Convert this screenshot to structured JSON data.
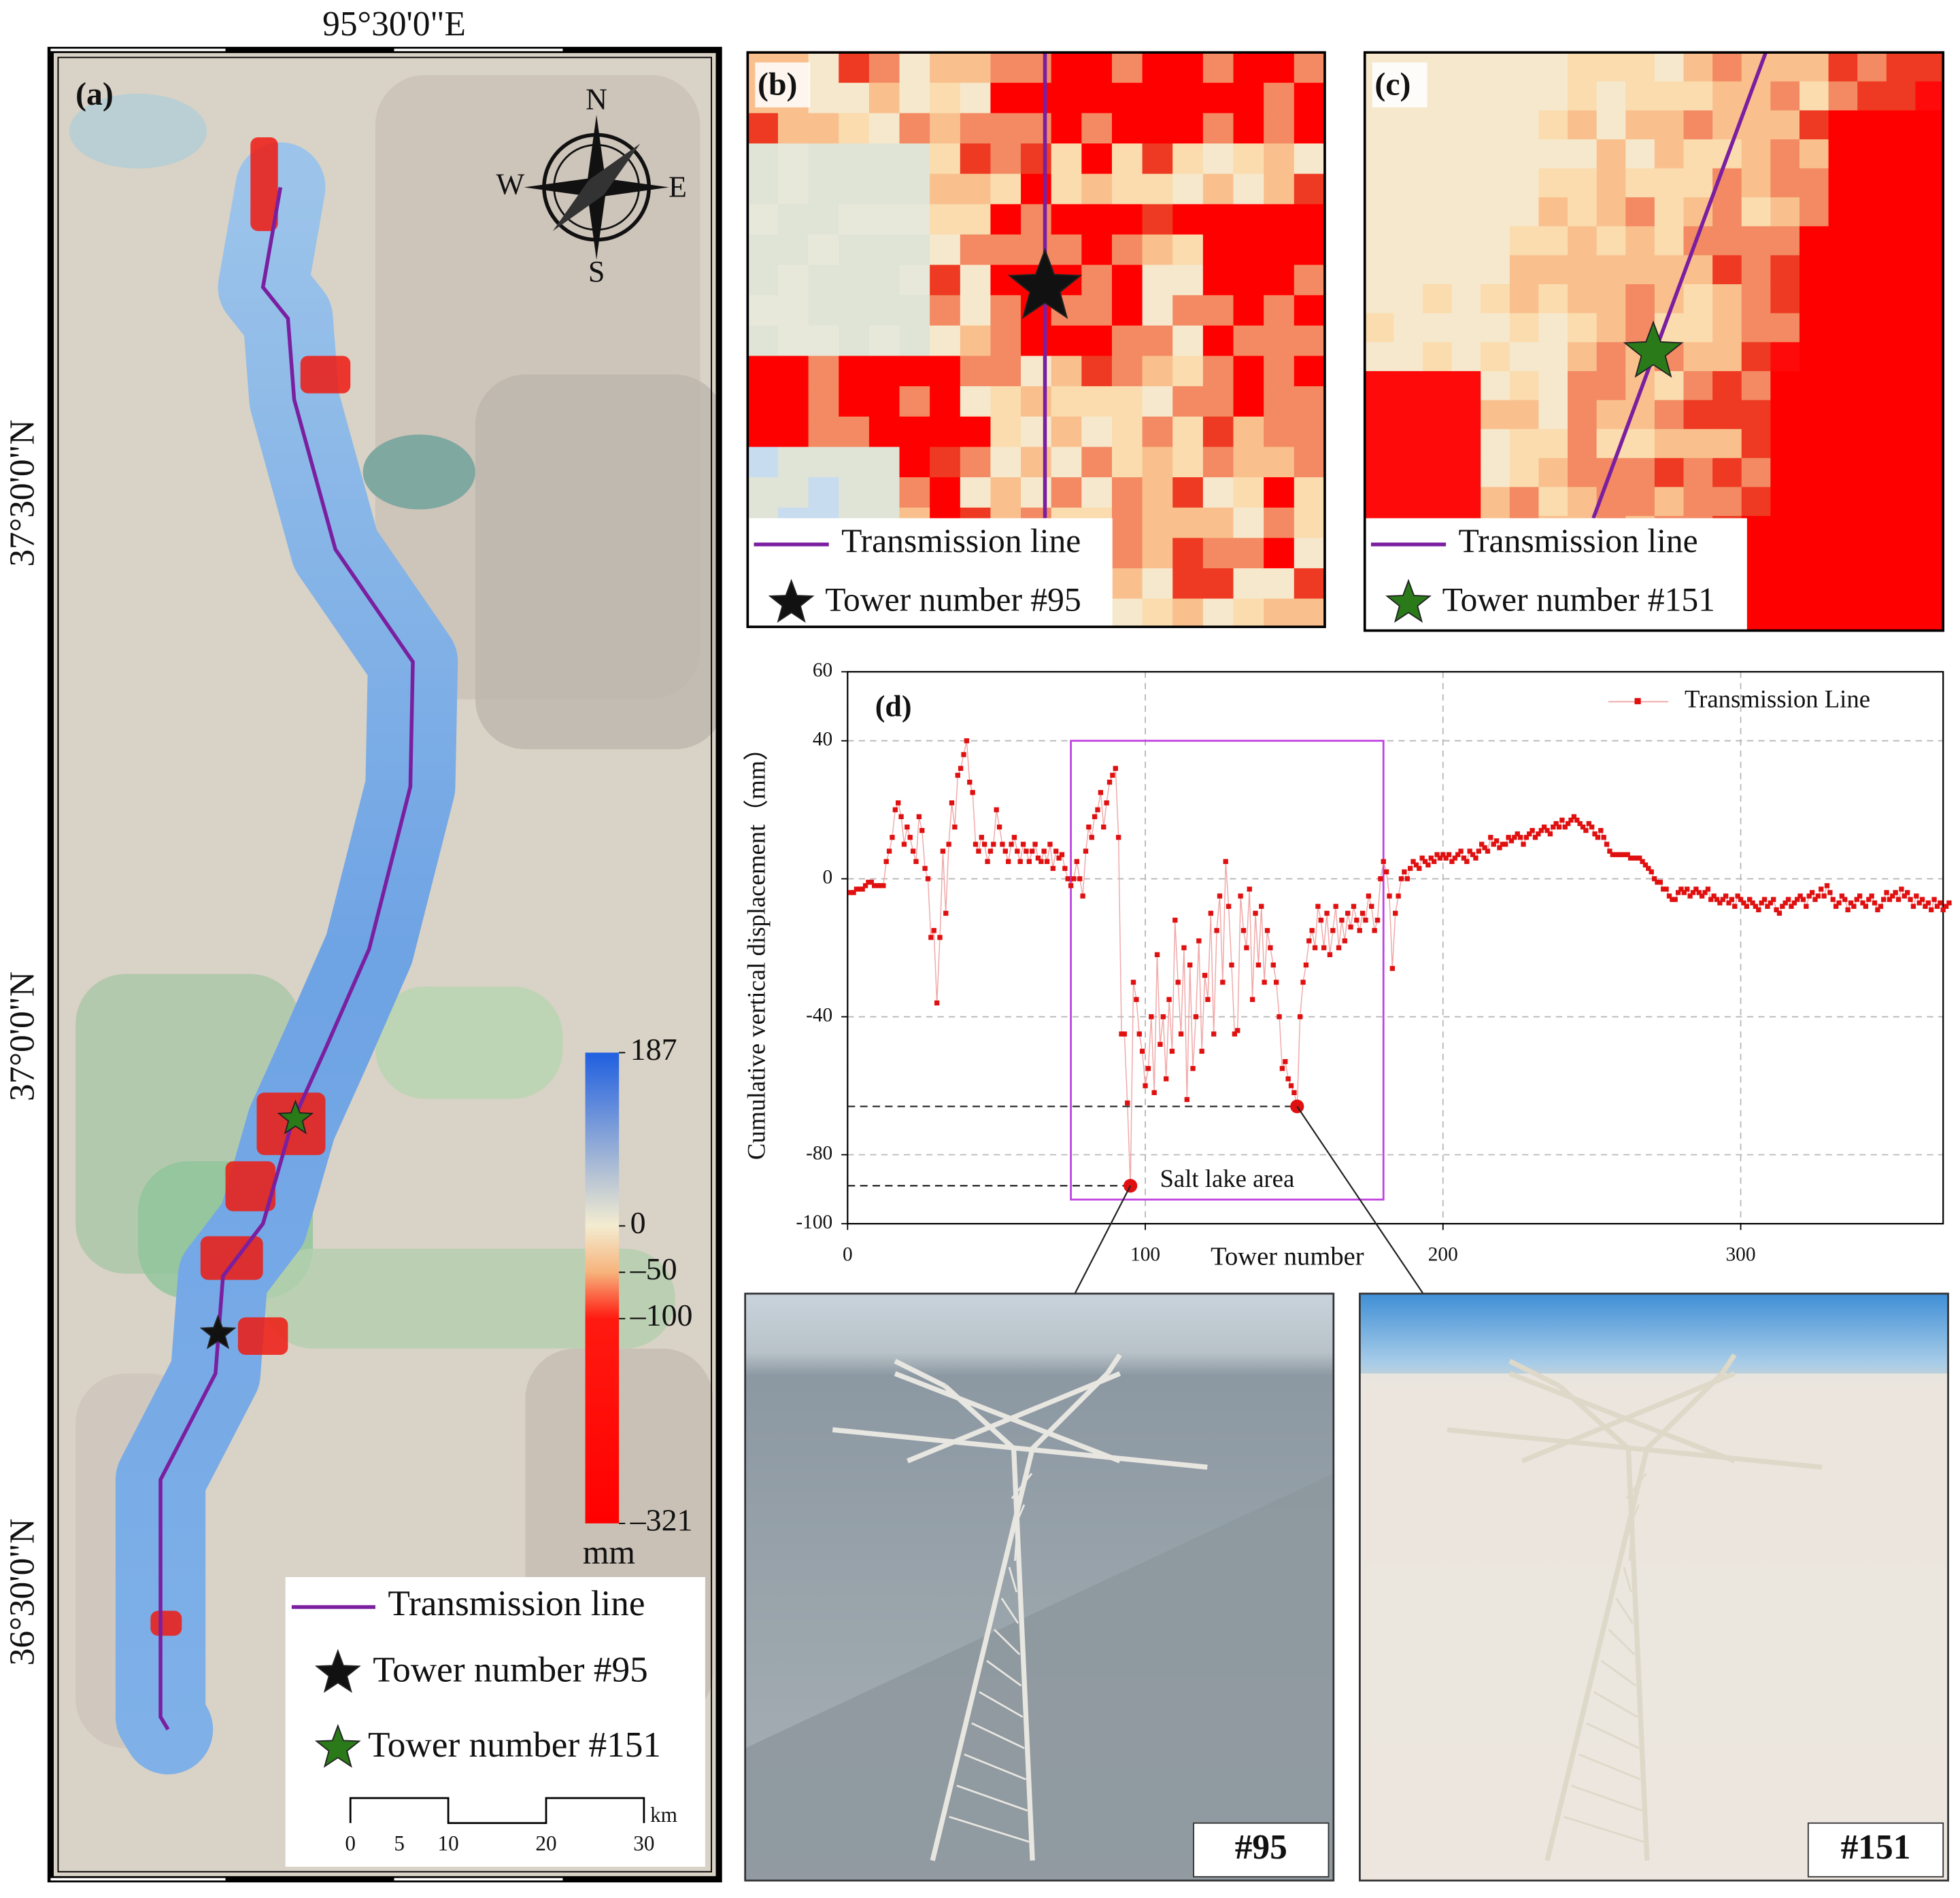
{
  "map": {
    "panel_label": "(a)",
    "longitude_label": "95°30'0\"E",
    "latitude_labels": [
      "37°30'0\"N",
      "37°0'0\"N",
      "36°30'0\"N"
    ],
    "compass": {
      "N": "N",
      "E": "E",
      "S": "S",
      "W": "W"
    },
    "colorbar": {
      "clim": [
        -321,
        187
      ],
      "ticks": [
        187,
        0,
        {
          "value": -50,
          "label": "–50"
        },
        {
          "value": -100,
          "label": "–100"
        },
        {
          "value": -321,
          "label": "–321"
        }
      ],
      "unit": "mm"
    },
    "legend": [
      "Transmission line",
      "Tower number #95",
      "Tower number #151"
    ],
    "scale_bar": {
      "ticks": [
        0,
        5,
        10,
        20,
        30
      ],
      "unit": "km"
    }
  },
  "panel_b": {
    "panel_label": "(b)",
    "legend": [
      "Transmission line",
      "Tower number #95"
    ]
  },
  "panel_c": {
    "panel_label": "(c)",
    "legend": [
      "Transmission line",
      "Tower number #151"
    ]
  },
  "photos": [
    {
      "label": "#95"
    },
    {
      "label": "#151"
    }
  ],
  "chart_data": {
    "type": "line",
    "panel_label": "(d)",
    "x_label": "Tower number",
    "y_label": "Cumulative vertical displacement（mm）",
    "annotation": "Salt lake area",
    "legend": "top-right",
    "grid": true,
    "xlim": [
      0,
      368
    ],
    "xticks": [
      0,
      100,
      200,
      300
    ],
    "ylim": [
      -100,
      60
    ],
    "yticks": [
      -100,
      -80,
      -40,
      0,
      40,
      60
    ],
    "highlight_box": {
      "x": [
        75,
        180
      ],
      "y": [
        -93,
        40
      ]
    },
    "highlight_x": [
      95,
      151
    ],
    "x": [
      1,
      2,
      3,
      4,
      5,
      6,
      7,
      8,
      9,
      10,
      11,
      12,
      13,
      14,
      15,
      16,
      17,
      18,
      19,
      20,
      21,
      22,
      23,
      24,
      25,
      26,
      27,
      28,
      29,
      30,
      31,
      32,
      33,
      34,
      35,
      36,
      37,
      38,
      39,
      40,
      41,
      42,
      43,
      44,
      45,
      46,
      47,
      48,
      49,
      50,
      51,
      52,
      53,
      54,
      55,
      56,
      57,
      58,
      59,
      60,
      61,
      62,
      63,
      64,
      65,
      66,
      67,
      68,
      69,
      70,
      71,
      72,
      73,
      74,
      75,
      76,
      77,
      78,
      79,
      80,
      81,
      82,
      83,
      84,
      85,
      86,
      87,
      88,
      89,
      90,
      91,
      92,
      93,
      94,
      95,
      96,
      97,
      98,
      99,
      100,
      101,
      102,
      103,
      104,
      105,
      106,
      107,
      108,
      109,
      110,
      111,
      112,
      113,
      114,
      115,
      116,
      117,
      118,
      119,
      120,
      121,
      122,
      123,
      124,
      125,
      126,
      127,
      128,
      129,
      130,
      131,
      132,
      133,
      134,
      135,
      136,
      137,
      138,
      139,
      140,
      141,
      142,
      143,
      144,
      145,
      146,
      147,
      148,
      149,
      150,
      151,
      152,
      153,
      154,
      155,
      156,
      157,
      158,
      159,
      160,
      161,
      162,
      163,
      164,
      165,
      166,
      167,
      168,
      169,
      170,
      171,
      172,
      173,
      174,
      175,
      176,
      177,
      178,
      179,
      180,
      181,
      182,
      183,
      184,
      185,
      186,
      187,
      188,
      189,
      190,
      191,
      192,
      193,
      194,
      195,
      196,
      197,
      198,
      199,
      200,
      201,
      202,
      203,
      204,
      205,
      206,
      207,
      208,
      209,
      210,
      211,
      212,
      213,
      214,
      215,
      216,
      217,
      218,
      219,
      220,
      221,
      222,
      223,
      224,
      225,
      226,
      227,
      228,
      229,
      230,
      231,
      232,
      233,
      234,
      235,
      236,
      237,
      238,
      239,
      240,
      241,
      242,
      243,
      244,
      245,
      246,
      247,
      248,
      249,
      250,
      251,
      252,
      253,
      254,
      255,
      256,
      257,
      258,
      259,
      260,
      261,
      262,
      263,
      264,
      265,
      266,
      267,
      268,
      269,
      270,
      271,
      272,
      273,
      274,
      275,
      276,
      277,
      278,
      279,
      280,
      281,
      282,
      283,
      284,
      285,
      286,
      287,
      288,
      289,
      290,
      291,
      292,
      293,
      294,
      295,
      296,
      297,
      298,
      299,
      300,
      301,
      302,
      303,
      304,
      305,
      306,
      307,
      308,
      309,
      310,
      311,
      312,
      313,
      314,
      315,
      316,
      317,
      318,
      319,
      320,
      321,
      322,
      323,
      324,
      325,
      326,
      327,
      328,
      329,
      330,
      331,
      332,
      333,
      334,
      335,
      336,
      337,
      338,
      339,
      340,
      341,
      342,
      343,
      344,
      345,
      346,
      347,
      348,
      349,
      350,
      351,
      352,
      353,
      354,
      355,
      356,
      357,
      358,
      359,
      360,
      361,
      362,
      363,
      364,
      365,
      366,
      367,
      368,
      369,
      370
    ],
    "series": [
      {
        "name": "Transmission Line",
        "color": "#e01010",
        "values": [
          -4,
          -4,
          -3,
          -3,
          -3,
          -2,
          -1,
          -1,
          -2,
          -2,
          -2,
          -2,
          5,
          8,
          12,
          20,
          22,
          18,
          10,
          15,
          12,
          8,
          5,
          18,
          14,
          3,
          0,
          -17,
          -15,
          -36,
          -17,
          8,
          -10,
          10,
          22,
          15,
          30,
          32,
          36,
          40,
          28,
          25,
          10,
          8,
          12,
          10,
          5,
          8,
          10,
          20,
          15,
          10,
          8,
          5,
          10,
          12,
          8,
          5,
          10,
          8,
          5,
          8,
          10,
          6,
          5,
          8,
          5,
          10,
          3,
          8,
          6,
          7,
          3,
          0,
          -2,
          0,
          5,
          0,
          -5,
          8,
          15,
          12,
          18,
          20,
          25,
          15,
          22,
          28,
          30,
          32,
          12,
          -45,
          -45,
          -65,
          -89,
          -30,
          -35,
          -45,
          -50,
          -60,
          -55,
          -40,
          -62,
          -22,
          -48,
          -40,
          -58,
          -35,
          -50,
          -12,
          -30,
          -45,
          -20,
          -64,
          -25,
          -55,
          -40,
          -18,
          -50,
          -28,
          -35,
          -10,
          -45,
          -15,
          -5,
          -30,
          5,
          -8,
          -25,
          -45,
          -44,
          -5,
          -15,
          -20,
          -3,
          -35,
          -10,
          -25,
          -8,
          -30,
          -15,
          -20,
          -25,
          -30,
          -40,
          -55,
          -53,
          -58,
          -60,
          -62,
          -66,
          -40,
          -30,
          -25,
          -18,
          -15,
          -20,
          -8,
          -12,
          -20,
          -10,
          -22,
          -15,
          -8,
          -20,
          -12,
          -18,
          -10,
          -14,
          -8,
          -12,
          -15,
          -10,
          -12,
          -5,
          -8,
          -15,
          -12,
          0,
          5,
          2,
          -5,
          -26,
          -10,
          -5,
          0,
          2,
          0,
          3,
          5,
          4,
          3,
          6,
          5,
          4,
          6,
          5,
          7,
          6,
          7,
          6,
          7,
          5,
          6,
          7,
          8,
          6,
          5,
          8,
          7,
          6,
          8,
          10,
          9,
          8,
          12,
          10,
          11,
          9,
          10,
          10,
          12,
          11,
          12,
          13,
          12,
          10,
          12,
          13,
          14,
          12,
          13,
          14,
          15,
          14,
          13,
          15,
          16,
          15,
          17,
          15,
          16,
          17,
          18,
          17,
          16,
          15,
          14,
          16,
          15,
          13,
          12,
          14,
          12,
          10,
          8,
          7,
          7,
          7,
          7,
          7,
          7,
          6,
          6,
          6,
          6,
          5,
          4,
          3,
          2,
          0,
          -1,
          -1,
          -3,
          -3,
          -5,
          -6,
          -6,
          -4,
          -3,
          -4,
          -3,
          -5,
          -4,
          -3,
          -4,
          -5,
          -4,
          -3,
          -6,
          -5,
          -6,
          -7,
          -6,
          -5,
          -7,
          -6,
          -8,
          -5,
          -6,
          -7,
          -8,
          -6,
          -7,
          -8,
          -9,
          -7,
          -6,
          -8,
          -7,
          -6,
          -9,
          -10,
          -8,
          -7,
          -6,
          -8,
          -7,
          -6,
          -5,
          -6,
          -8,
          -5,
          -4,
          -6,
          -5,
          -3,
          -5,
          -2,
          -4,
          -6,
          -8,
          -7,
          -5,
          -6,
          -9,
          -7,
          -8,
          -6,
          -5,
          -7,
          -8,
          -6,
          -5,
          -7,
          -9,
          -8,
          -6,
          -4,
          -6,
          -5,
          -4,
          -6,
          -3,
          -5,
          -4,
          -6,
          -8,
          -5,
          -7,
          -6,
          -8,
          -7,
          -9,
          -6,
          -8,
          -7,
          -9,
          -8,
          -7
        ]
      }
    ]
  }
}
